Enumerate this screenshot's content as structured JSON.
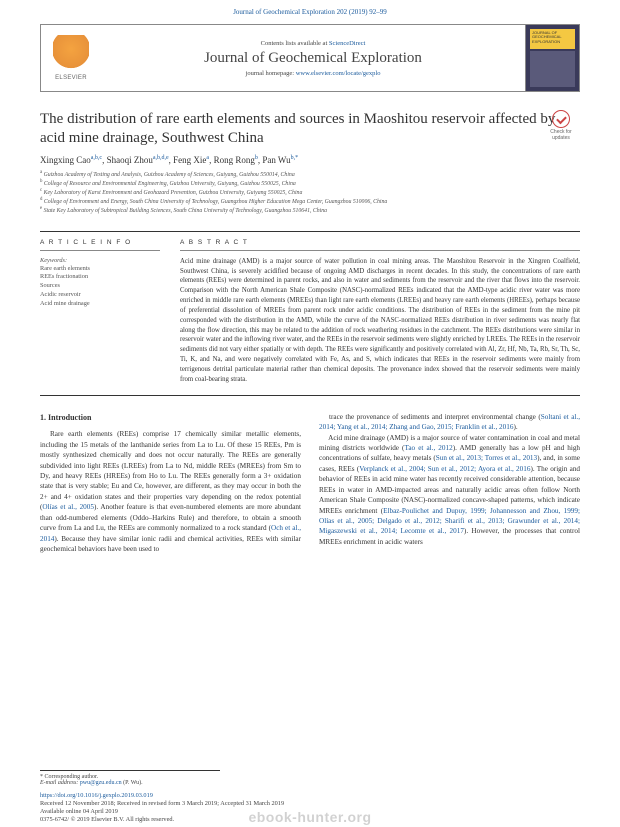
{
  "header": {
    "citation": "Journal of Geochemical Exploration 202 (2019) 92–99",
    "contents_text": "Contents lists available at ",
    "contents_link": "ScienceDirect",
    "journal_name": "Journal of Geochemical Exploration",
    "homepage_label": "journal homepage: ",
    "homepage_url": "www.elsevier.com/locate/gexplo",
    "elsevier": "ELSEVIER",
    "cover_text": "JOURNAL OF GEOCHEMICAL EXPLORATION"
  },
  "title": "The distribution of rare earth elements and sources in Maoshitou reservoir affected by acid mine drainage, Southwest China",
  "check_label": "Check for updates",
  "authors_html": "Xingxing Cao<sup>a,b,c</sup>, Shaoqi Zhou<sup>a,b,d,e</sup>, Feng Xie<sup>a</sup>, Rong Rong<sup>b</sup>, Pan Wu<sup>b,*</sup>",
  "affiliations": [
    "a Guizhou Academy of Testing and Analysis, Guizhou Academy of Sciences, Guiyang, Guizhou 550014, China",
    "b College of Resource and Environmental Engineering, Guizhou University, Guiyang, Guizhou 550025, China",
    "c Key Laboratory of Karst Environment and Geohazard Prevention, Guizhou University, Guiyang 550025, China",
    "d College of Environment and Energy, South China University of Technology, Guangzhou Higher Education Mega Center, Guangzhou 510006, China",
    "e State Key Laboratory of Subtropical Building Sciences, South China University of Technology, Guangzhou 510641, China"
  ],
  "article_info": {
    "heading": "A R T I C L E  I N F O",
    "kw_label": "Keywords:",
    "keywords": [
      "Rare earth elements",
      "REEs fractionation",
      "Sources",
      "Acidic reservoir",
      "Acid mine drainage"
    ]
  },
  "abstract": {
    "heading": "A B S T R A C T",
    "text": "Acid mine drainage (AMD) is a major source of water pollution in coal mining areas. The Maoshitou Reservoir in the Xingren Coalfield, Southwest China, is severely acidified because of ongoing AMD discharges in recent decades. In this study, the concentrations of rare earth elements (REEs) were determined in parent rocks, and also in water and sediments from the reservoir and the river that flows into the reservoir. Comparison with the North American Shale Composite (NASC)-normalized REEs indicated that the AMD-type acidic river water was more enriched in middle rare earth elements (MREEs) than light rare earth elements (LREEs) and heavy rare earth elements (HREEs), perhaps because of preferential dissolution of MREEs from parent rock under acidic conditions. The distribution of REEs in the sediment from the mine pit corresponded with the distribution in the AMD, while the curve of the NASC-normalized REEs distribution in river sediments was nearly flat along the flow direction, this may be related to the addition of rock weathering residues in the catchment. The REEs distributions were similar in reservoir water and the inflowing river water, and the REEs in the reservoir sediments were slightly enriched by LREEs. The REEs in the reservoir sediments did not vary either spatially or with depth. The REEs were significantly and positively correlated with Al, Zr, Hf, Nb, Ta, Rb, Sr, Th, Sc, Ti, K, and Na, and were negatively correlated with Fe, As, and S, which indicates that REEs in the reservoir sediments were mainly from terrigenous detrital particulate material rather than chemical deposits. The provenance index showed that the reservoir sediments were mainly from coal-bearing strata."
  },
  "intro": {
    "heading": "1. Introduction",
    "col1": "Rare earth elements (REEs) comprise 17 chemically similar metallic elements, including the 15 metals of the lanthanide series from La to Lu. Of these 15 REEs, Pm is mostly synthesized chemically and does not occur naturally. The REEs are generally subdivided into light REEs (LREEs) from La to Nd, middle REEs (MREEs) from Sm to Dy, and heavy REEs (HREEs) from Ho to Lu. The REEs generally form a 3+ oxidation state that is very stable; Eu and Ce, however, are different, as they may occur in both the 2+ and 4+ oxidation states and their properties vary depending on the redox potential (Olías et al., 2005). Another feature is that even-numbered elements are more abundant than odd-numbered elements (Oddo–Harkins Rule) and therefore, to obtain a smooth curve from La and Lu, the REEs are commonly normalized to a rock standard (Och et al., 2014). Because they have similar ionic radii and chemical activities, REEs with similar geochemical behaviors have been used to",
    "col2": "trace the provenance of sediments and interpret environmental change (Soltani et al., 2014; Yang et al., 2014; Zhang and Gao, 2015; Franklin et al., 2016).\n    Acid mine drainage (AMD) is a major source of water contamination in coal and metal mining districts worldwide (Tao et al., 2012). AMD generally has a low pH and high concentrations of sulfate, heavy metals (Sun et al., 2013; Torres et al., 2013), and, in some cases, REEs (Verplanck et al., 2004; Sun et al., 2012; Ayora et al., 2016). The origin and behavior of REEs in acid mine water has recently received considerable attention, because REEs in water in AMD-impacted areas and naturally acidic areas often follow North American Shale Composite (NASC)-normalized concave-shaped patterns, which indicate MREEs enrichment (Elbaz-Poulichet and Dupuy, 1999; Johannesson and Zhou, 1999; Olías et al., 2005; Delgado et al., 2012; Sharifi et al., 2013; Grawunder et al., 2014; Migaszewski et al., 2014; Lecomte et al., 2017). However, the processes that control MREEs enrichment in acidic waters"
  },
  "footer": {
    "corr_label": "* Corresponding author.",
    "email_label": "E-mail address: ",
    "email": "pwu@gzu.edu.cn",
    "email_who": " (P. Wu).",
    "doi": "https://doi.org/10.1016/j.gexplo.2019.03.019",
    "received": "Received 12 November 2018; Received in revised form 3 March 2019; Accepted 31 March 2019",
    "available": "Available online 04 April 2019",
    "copyright": "0375-6742/ © 2019 Elsevier B.V. All rights reserved."
  },
  "watermark": "ebook-hunter.org"
}
